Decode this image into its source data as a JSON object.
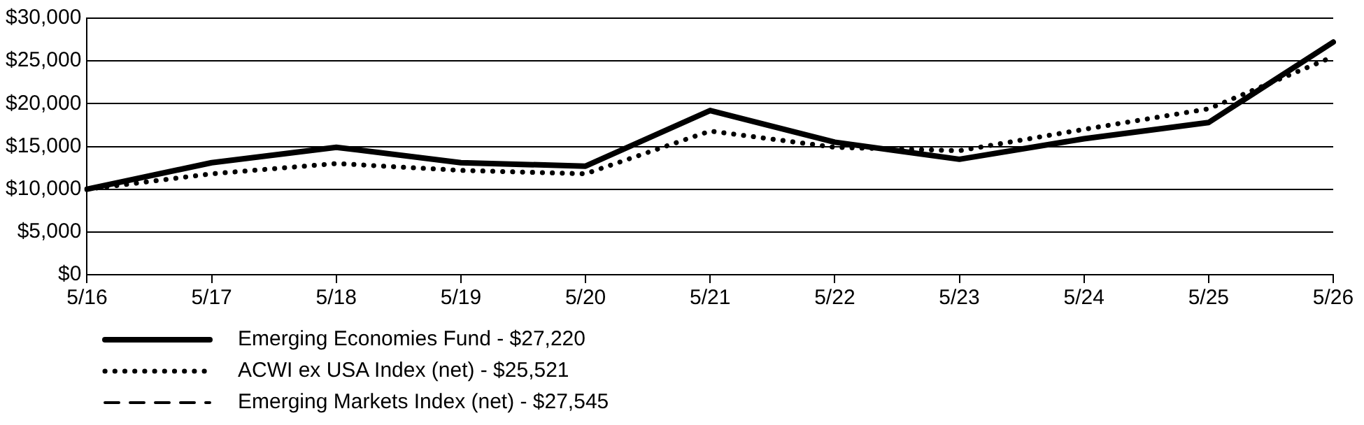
{
  "chart_data": {
    "type": "line",
    "categories": [
      "5/16",
      "5/17",
      "5/18",
      "5/19",
      "5/20",
      "5/21",
      "5/22",
      "5/23",
      "5/24",
      "5/25",
      "5/26"
    ],
    "series": [
      {
        "name": "Emerging Economies Fund - $27,220",
        "color": "#000000",
        "line_style": "solid",
        "values": [
          10000,
          13100,
          14900,
          13100,
          12700,
          19200,
          15500,
          13500,
          15900,
          17800,
          27200
        ]
      },
      {
        "name": "ACWI ex USA Index (net) - $25,521",
        "color": "#000000",
        "line_style": "dotted",
        "values": [
          10000,
          11800,
          13000,
          12200,
          11800,
          16800,
          14900,
          14500,
          17000,
          19400,
          25500
        ]
      },
      {
        "name": "Emerging Markets Index (net) - $27,545",
        "color": "#000000",
        "line_style": "dashed",
        "values": [
          null,
          null,
          null,
          null,
          null,
          null,
          null,
          null,
          null,
          null,
          null
        ]
      }
    ],
    "ylim": [
      0,
      30000
    ],
    "yticks": [
      {
        "value": 0,
        "label": "$0"
      },
      {
        "value": 5000,
        "label": "$5,000"
      },
      {
        "value": 10000,
        "label": "$10,000"
      },
      {
        "value": 15000,
        "label": "$15,000"
      },
      {
        "value": 20000,
        "label": "$20,000"
      },
      {
        "value": 25000,
        "label": "$25,000"
      },
      {
        "value": 30000,
        "label": "$30,000"
      }
    ],
    "grid": "y",
    "legend": "bottom left",
    "marker": "none"
  }
}
